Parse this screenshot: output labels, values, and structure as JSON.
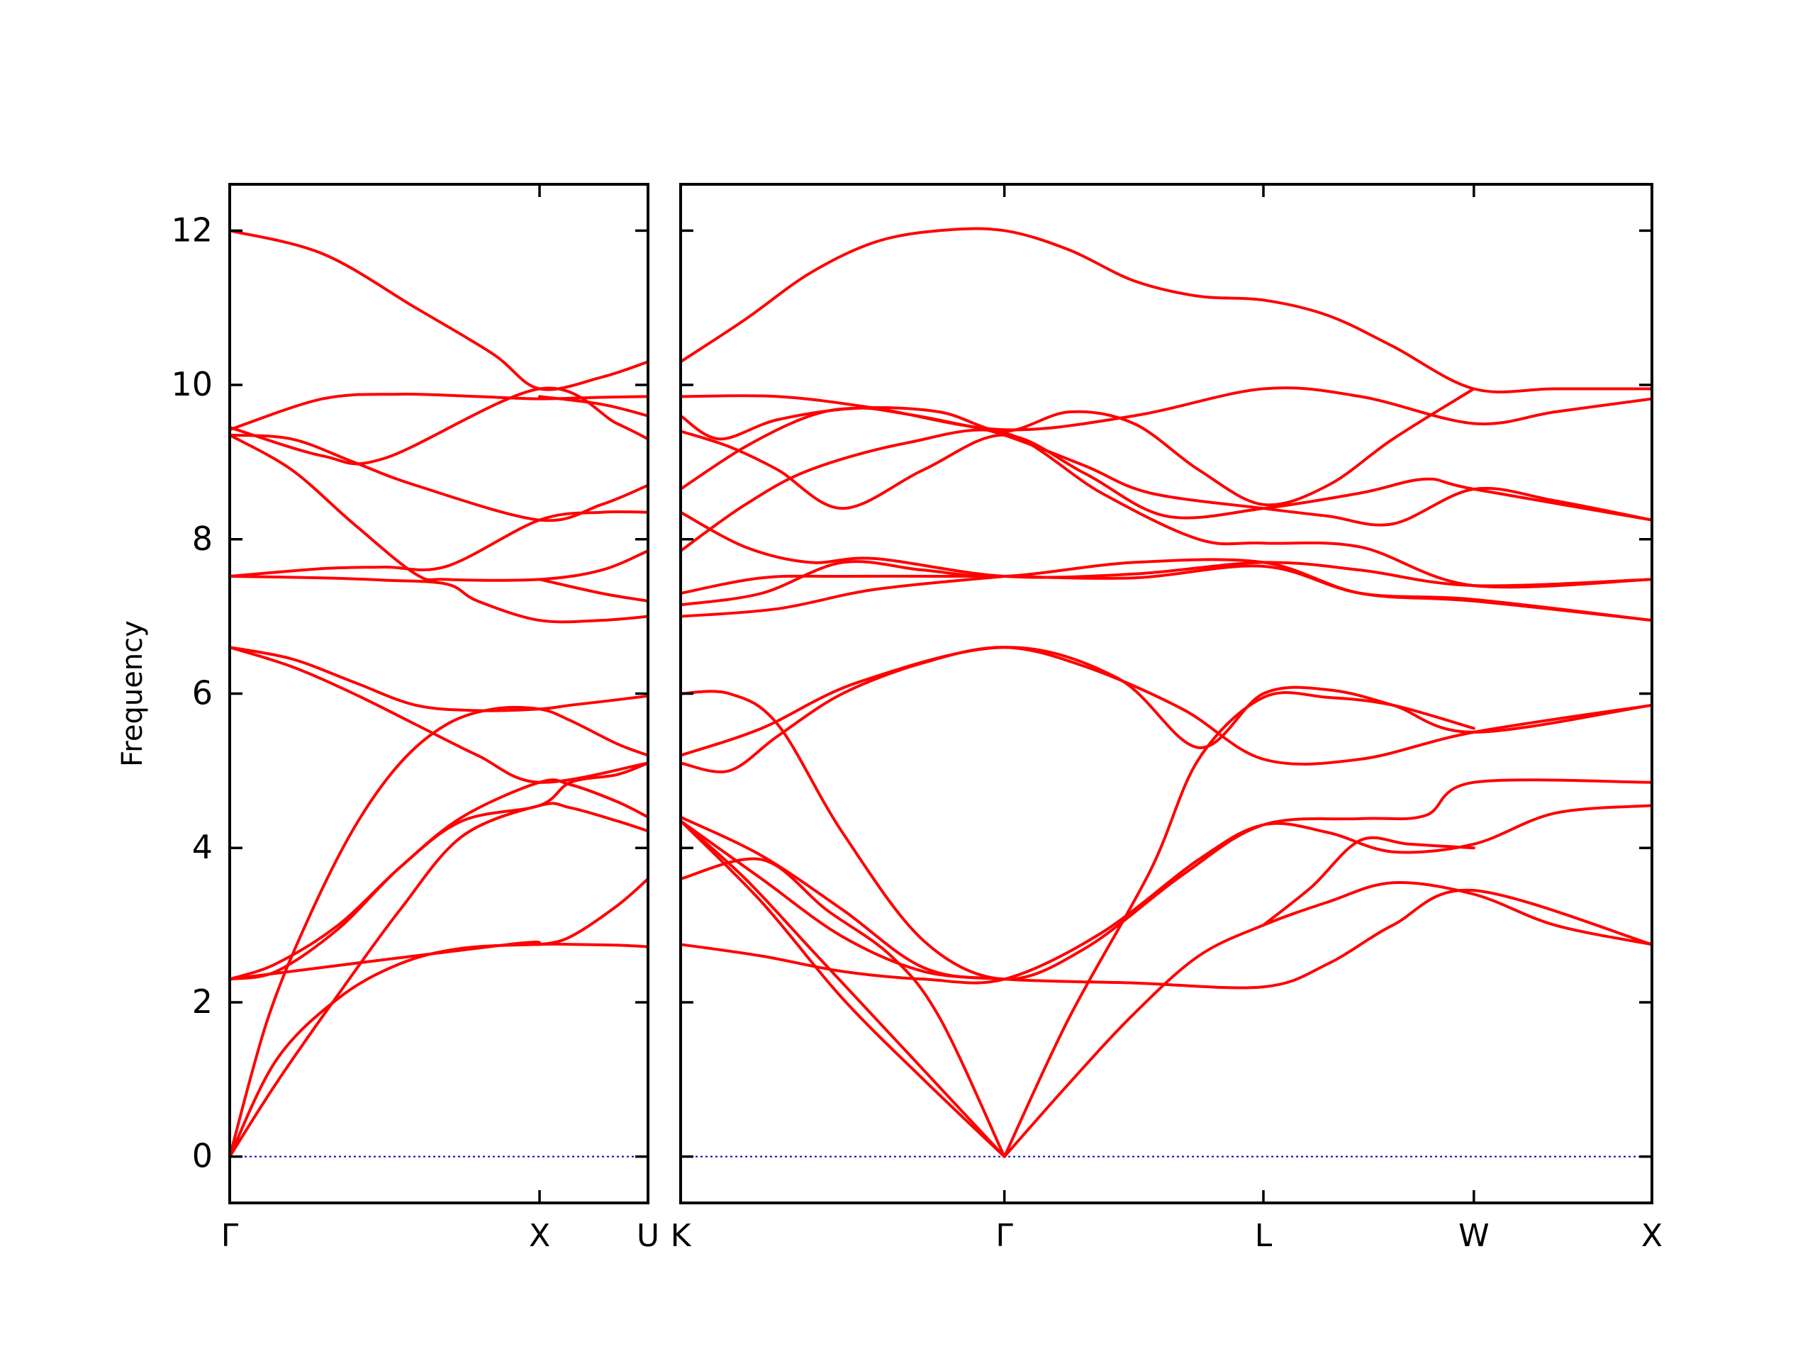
{
  "chart_data": {
    "type": "line",
    "title": "",
    "ylabel": "Frequency",
    "ylim": [
      -0.6,
      12.6
    ],
    "yticks": [
      0,
      2,
      4,
      6,
      8,
      10,
      12
    ],
    "grid": false,
    "legend": "none",
    "colors": {
      "band": "#ff0000",
      "zero_line": "#0000cc",
      "axes": "#000000"
    },
    "panels": [
      {
        "name": "left",
        "x_range": [
          0,
          1.35
        ],
        "x_ticks": [
          {
            "x": 0,
            "label": "Γ"
          },
          {
            "x": 1.0,
            "label": "X"
          },
          {
            "x": 1.35,
            "label": "U"
          }
        ],
        "series": [
          {
            "x": [
              0,
              0.15,
              0.35,
              0.55,
              0.75,
              1.0,
              1.1,
              1.25,
              1.35
            ],
            "y": [
              0,
              0.95,
              2.1,
              3.2,
              4.15,
              4.55,
              4.52,
              4.35,
              4.22
            ]
          },
          {
            "x": [
              0,
              0.15,
              0.35,
              0.55,
              0.75,
              1.0,
              1.1,
              1.25,
              1.35
            ],
            "y": [
              0,
              1.25,
              2.05,
              2.5,
              2.7,
              2.75,
              2.75,
              2.74,
              2.72
            ]
          },
          {
            "x": [
              0,
              0.12,
              0.25,
              0.4,
              0.55,
              0.7,
              0.85,
              1.0,
              1.1,
              1.25,
              1.35
            ],
            "y": [
              0,
              1.75,
              3.05,
              4.25,
              5.1,
              5.6,
              5.8,
              5.8,
              5.65,
              5.35,
              5.2
            ]
          },
          {
            "x": [
              0,
              0.15,
              0.35,
              0.55,
              0.75,
              1.0,
              1.1,
              1.25,
              1.35
            ],
            "y": [
              2.3,
              2.5,
              3.0,
              3.75,
              4.4,
              4.85,
              4.82,
              4.6,
              4.4
            ]
          },
          {
            "x": [
              0,
              0.15,
              0.35,
              0.55,
              0.75,
              1.0,
              1.1,
              1.25,
              1.35
            ],
            "y": [
              2.3,
              2.4,
              2.95,
              3.75,
              4.35,
              4.55,
              4.85,
              4.95,
              5.1
            ]
          },
          {
            "x": [
              0,
              0.9,
              1.0,
              1.1,
              1.25,
              1.35
            ],
            "y": [
              2.3,
              2.75,
              2.75,
              2.85,
              3.25,
              3.6
            ]
          },
          {
            "x": [
              0,
              0.2,
              0.4,
              0.6,
              0.8,
              1.0,
              1.1,
              1.25,
              1.35
            ],
            "y": [
              6.6,
              6.45,
              6.15,
              5.85,
              5.78,
              5.8,
              5.85,
              5.92,
              5.97
            ]
          },
          {
            "x": [
              0,
              0.2,
              0.4,
              0.6,
              0.8,
              1.0,
              1.35
            ],
            "y": [
              6.6,
              6.35,
              6.0,
              5.6,
              5.2,
              4.85,
              5.1
            ]
          },
          {
            "x": [
              0,
              0.3,
              0.5,
              0.7,
              1.0,
              1.2,
              1.35
            ],
            "y": [
              7.52,
              7.62,
              7.64,
              7.65,
              8.25,
              8.35,
              8.35
            ]
          },
          {
            "x": [
              0,
              0.3,
              0.5,
              0.7,
              0.8,
              1.0,
              1.2,
              1.35
            ],
            "y": [
              7.52,
              7.5,
              7.47,
              7.42,
              7.2,
              6.95,
              6.95,
              7.0
            ]
          },
          {
            "x": [
              0,
              0.2,
              0.4,
              0.6,
              0.7,
              1.0,
              1.2,
              1.35
            ],
            "y": [
              9.35,
              8.9,
              8.2,
              7.55,
              7.48,
              7.48,
              7.6,
              7.85
            ]
          },
          {
            "x": [
              0,
              0.2,
              0.4,
              0.6,
              1.0,
              1.2,
              1.35
            ],
            "y": [
              9.35,
              9.3,
              9.0,
              8.7,
              8.25,
              8.45,
              8.7
            ]
          },
          {
            "x": [
              0,
              0.3,
              0.5,
              1.0,
              1.25,
              1.35
            ],
            "y": [
              9.45,
              9.08,
              9.05,
              9.95,
              9.5,
              9.3
            ]
          },
          {
            "x": [
              0,
              0.3,
              0.55,
              0.8,
              1.0,
              1.2,
              1.35
            ],
            "y": [
              9.42,
              9.82,
              9.88,
              9.85,
              9.82,
              9.84,
              9.85
            ]
          },
          {
            "x": [
              0,
              0.3,
              0.6,
              0.85,
              1.0,
              1.2,
              1.35
            ],
            "y": [
              12.0,
              11.7,
              11.0,
              10.4,
              9.95,
              10.1,
              10.3
            ]
          },
          {
            "x": [
              1.0,
              1.2,
              1.35
            ],
            "y": [
              7.48,
              7.3,
              7.2
            ]
          },
          {
            "x": [
              1.0,
              1.2,
              1.35
            ],
            "y": [
              9.85,
              9.75,
              9.6
            ]
          }
        ]
      },
      {
        "name": "right",
        "x_range": [
          0,
          3.0
        ],
        "x_ticks": [
          {
            "x": 0,
            "label": "K"
          },
          {
            "x": 1.0,
            "label": "Γ"
          },
          {
            "x": 1.8,
            "label": "L"
          },
          {
            "x": 2.45,
            "label": "W"
          },
          {
            "x": 3.0,
            "label": "X"
          }
        ],
        "series": [
          {
            "x": [
              0,
              0.2,
              0.4,
              0.6,
              0.8,
              1.0,
              1.2,
              1.4,
              1.6,
              1.8,
              2.0,
              2.2,
              2.45,
              2.7,
              3.0
            ],
            "y": [
              10.3,
              10.85,
              11.45,
              11.85,
              12.0,
              12.0,
              11.75,
              11.35,
              11.15,
              11.1,
              10.9,
              10.5,
              9.95,
              9.95,
              9.95
            ]
          },
          {
            "x": [
              0,
              0.3,
              0.6,
              1.0,
              1.4,
              1.8,
              2.1,
              2.45,
              2.7,
              3.0
            ],
            "y": [
              9.85,
              9.85,
              9.7,
              9.42,
              9.6,
              9.95,
              9.85,
              9.5,
              9.65,
              9.82
            ]
          },
          {
            "x": [
              0,
              0.12,
              0.3,
              0.55,
              0.8,
              1.0,
              1.2,
              1.4,
              1.6,
              1.8,
              2.0,
              2.2,
              2.45
            ],
            "y": [
              9.6,
              9.3,
              9.55,
              9.7,
              9.65,
              9.4,
              9.65,
              9.5,
              8.9,
              8.45,
              8.7,
              9.3,
              9.95
            ]
          },
          {
            "x": [
              0,
              0.2,
              0.4,
              0.55,
              0.7,
              0.85,
              1.0,
              1.25,
              1.45,
              1.8,
              2.0,
              2.2,
              2.45,
              2.7,
              3.0
            ],
            "y": [
              8.65,
              9.2,
              9.6,
              9.7,
              9.62,
              9.5,
              9.35,
              8.95,
              8.6,
              8.4,
              8.3,
              8.2,
              8.65,
              8.5,
              8.25
            ]
          },
          {
            "x": [
              0,
              0.15,
              0.3,
              0.5,
              0.75,
              1.0,
              1.25,
              1.5,
              1.8,
              2.1,
              2.3,
              2.45,
              3.0
            ],
            "y": [
              9.4,
              9.2,
              8.9,
              8.4,
              8.9,
              9.35,
              8.85,
              8.3,
              8.4,
              8.6,
              8.78,
              8.65,
              8.25
            ]
          },
          {
            "x": [
              0,
              0.2,
              0.4,
              0.7,
              1.0,
              1.3,
              1.6,
              1.8,
              2.1,
              2.45,
              3.0
            ],
            "y": [
              7.85,
              8.45,
              8.9,
              9.25,
              9.38,
              8.6,
              8.0,
              7.95,
              7.9,
              7.4,
              7.48
            ]
          },
          {
            "x": [
              0,
              0.2,
              0.4,
              0.6,
              1.0,
              1.4,
              1.8,
              2.1,
              2.45,
              3.0
            ],
            "y": [
              8.35,
              7.9,
              7.7,
              7.75,
              7.52,
              7.55,
              7.7,
              7.6,
              7.4,
              7.48
            ]
          },
          {
            "x": [
              0,
              0.25,
              0.5,
              0.8,
              1.0,
              1.4,
              1.8,
              2.1,
              2.45,
              3.0
            ],
            "y": [
              7.3,
              7.5,
              7.52,
              7.52,
              7.52,
              7.5,
              7.65,
              7.3,
              7.22,
              6.95
            ]
          },
          {
            "x": [
              0,
              0.25,
              0.5,
              0.75,
              1.0,
              1.4,
              1.8,
              2.1,
              2.45,
              3.0
            ],
            "y": [
              7.15,
              7.3,
              7.7,
              7.6,
              7.52,
              7.7,
              7.7,
              7.3,
              7.2,
              6.95
            ]
          },
          {
            "x": [
              0,
              0.3,
              0.6,
              1.0
            ],
            "y": [
              7.0,
              7.1,
              7.35,
              7.52
            ]
          },
          {
            "x": [
              0,
              0.15,
              0.3,
              0.5,
              0.75,
              1.0,
              1.25,
              1.55,
              1.8,
              2.1,
              2.3,
              2.45,
              3.0
            ],
            "y": [
              6.0,
              6.0,
              5.6,
              4.2,
              2.8,
              2.3,
              2.7,
              3.65,
              4.3,
              4.38,
              4.42,
              4.85,
              4.85
            ]
          },
          {
            "x": [
              0,
              0.15,
              0.3,
              0.5,
              0.75,
              1.0,
              1.25,
              1.55,
              1.8,
              2.1,
              2.45,
              3.0
            ],
            "y": [
              5.1,
              5.0,
              5.45,
              6.0,
              6.4,
              6.6,
              6.35,
              5.8,
              5.15,
              5.15,
              5.5,
              5.85
            ]
          },
          {
            "x": [
              0,
              0.25,
              0.55,
              1.0,
              1.35,
              1.6,
              1.8,
              2.0,
              2.2,
              2.45,
              3.0
            ],
            "y": [
              5.2,
              5.55,
              6.15,
              6.6,
              6.2,
              5.3,
              6.0,
              6.05,
              5.85,
              5.5,
              5.85
            ]
          },
          {
            "x": [
              0,
              0.2,
              0.4,
              0.6,
              0.8,
              1.0
            ],
            "y": [
              4.35,
              3.6,
              2.7,
              1.8,
              0.9,
              0
            ]
          },
          {
            "x": [
              0,
              0.25,
              0.5,
              0.75,
              1.0
            ],
            "y": [
              4.35,
              3.3,
              2.05,
              1.0,
              0
            ]
          },
          {
            "x": [
              0,
              0.25,
              0.45,
              0.65,
              0.8,
              1.0
            ],
            "y": [
              3.6,
              3.85,
              3.2,
              2.6,
              1.8,
              0
            ]
          },
          {
            "x": [
              0,
              0.25,
              0.5,
              0.75,
              1.0
            ],
            "y": [
              4.35,
              3.6,
              2.85,
              2.4,
              2.3
            ]
          },
          {
            "x": [
              0,
              0.25,
              0.5,
              0.75,
              1.0,
              1.4,
              1.8,
              2.0,
              2.2,
              2.45,
              3.0
            ],
            "y": [
              4.4,
              3.9,
              3.2,
              2.45,
              2.3,
              2.25,
              2.2,
              2.5,
              3.0,
              3.45,
              2.75
            ]
          },
          {
            "x": [
              0,
              0.25,
              0.5,
              0.75,
              1.0,
              1.3,
              1.6,
              1.8,
              2.0,
              2.2,
              2.45,
              2.7,
              3.0
            ],
            "y": [
              2.75,
              2.6,
              2.4,
              2.3,
              2.3,
              2.9,
              3.85,
              4.3,
              4.2,
              3.95,
              4.05,
              4.45,
              4.55
            ]
          },
          {
            "x": [
              1.0,
              1.2,
              1.4,
              1.6,
              1.8,
              2.0,
              2.2,
              2.45,
              2.7,
              3.0
            ],
            "y": [
              0,
              0.95,
              1.85,
              2.6,
              3.0,
              3.3,
              3.55,
              3.4,
              3.0,
              2.75
            ]
          },
          {
            "x": [
              1.0,
              1.2,
              1.45,
              1.6,
              1.8,
              2.0,
              2.2,
              2.45
            ],
            "y": [
              0,
              1.8,
              3.7,
              5.15,
              5.95,
              5.95,
              5.85,
              5.55
            ]
          },
          {
            "x": [
              1.8,
              1.95,
              2.1,
              2.25,
              2.45
            ],
            "y": [
              3.0,
              3.5,
              4.1,
              4.05,
              4.0
            ]
          }
        ]
      }
    ]
  }
}
